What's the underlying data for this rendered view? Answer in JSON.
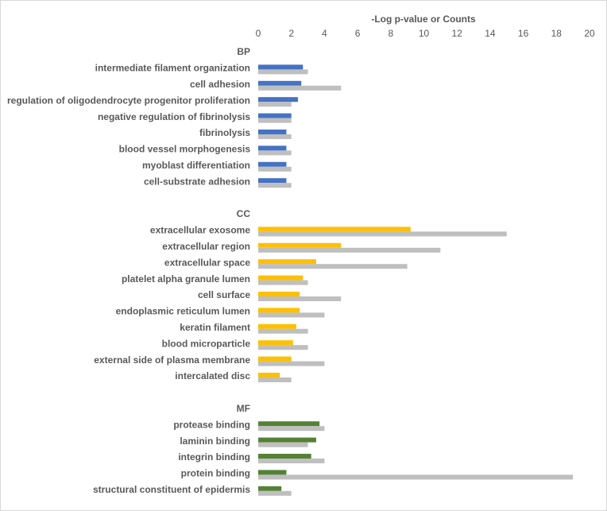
{
  "chart_data": {
    "type": "hbar",
    "x_label": "-Log p-value or Counts",
    "xlim": [
      0,
      20
    ],
    "xticks": [
      0,
      2,
      4,
      6,
      8,
      10,
      12,
      14,
      16,
      18,
      20
    ],
    "grid": false,
    "categories": [
      "BP",
      "intermediate filament organization",
      "cell adhesion",
      "regulation of oligodendrocyte progenitor proliferation",
      "negative regulation of fibrinolysis",
      "fibrinolysis",
      "blood vessel morphogenesis",
      "myoblast differentiation",
      "cell-substrate adhesion",
      null,
      "CC",
      "extracellular exosome",
      "extracellular region",
      "extracellular space",
      "platelet alpha granule lumen",
      "cell surface",
      "endoplasmic reticulum lumen",
      "keratin filament",
      "blood microparticle",
      "external side of plasma membrane",
      "intercalated disc",
      null,
      "MF",
      "protease binding",
      "laminin binding",
      "integrin binding",
      "protein binding",
      "structural constituent of epidermis"
    ],
    "series": [
      {
        "color": "#4472c4",
        "values": [
          null,
          2.7,
          2.6,
          2.4,
          2,
          1.7,
          1.7,
          1.7,
          1.7,
          null,
          null,
          null,
          null,
          null,
          null,
          null,
          null,
          null,
          null,
          null,
          null,
          null,
          null,
          null,
          null,
          null,
          null,
          null
        ]
      },
      {
        "color": "#ffc000",
        "values": [
          null,
          null,
          null,
          null,
          null,
          null,
          null,
          null,
          null,
          null,
          null,
          9.2,
          5,
          3.5,
          2.7,
          2.5,
          2.5,
          2.3,
          2.1,
          2,
          1.3,
          null,
          null,
          null,
          null,
          null,
          null,
          null
        ]
      },
      {
        "color": "#548235",
        "values": [
          null,
          null,
          null,
          null,
          null,
          null,
          null,
          null,
          null,
          null,
          null,
          null,
          null,
          null,
          null,
          null,
          null,
          null,
          null,
          null,
          null,
          null,
          null,
          3.7,
          3.5,
          3.2,
          1.7,
          1.4
        ]
      },
      {
        "color": "#bfbfbf",
        "values": [
          null,
          3,
          5,
          2,
          2,
          2,
          2,
          2,
          2,
          null,
          null,
          15,
          11,
          9,
          3,
          5,
          4,
          3,
          3,
          4,
          2,
          null,
          null,
          4,
          3,
          4,
          19,
          2
        ]
      }
    ]
  }
}
